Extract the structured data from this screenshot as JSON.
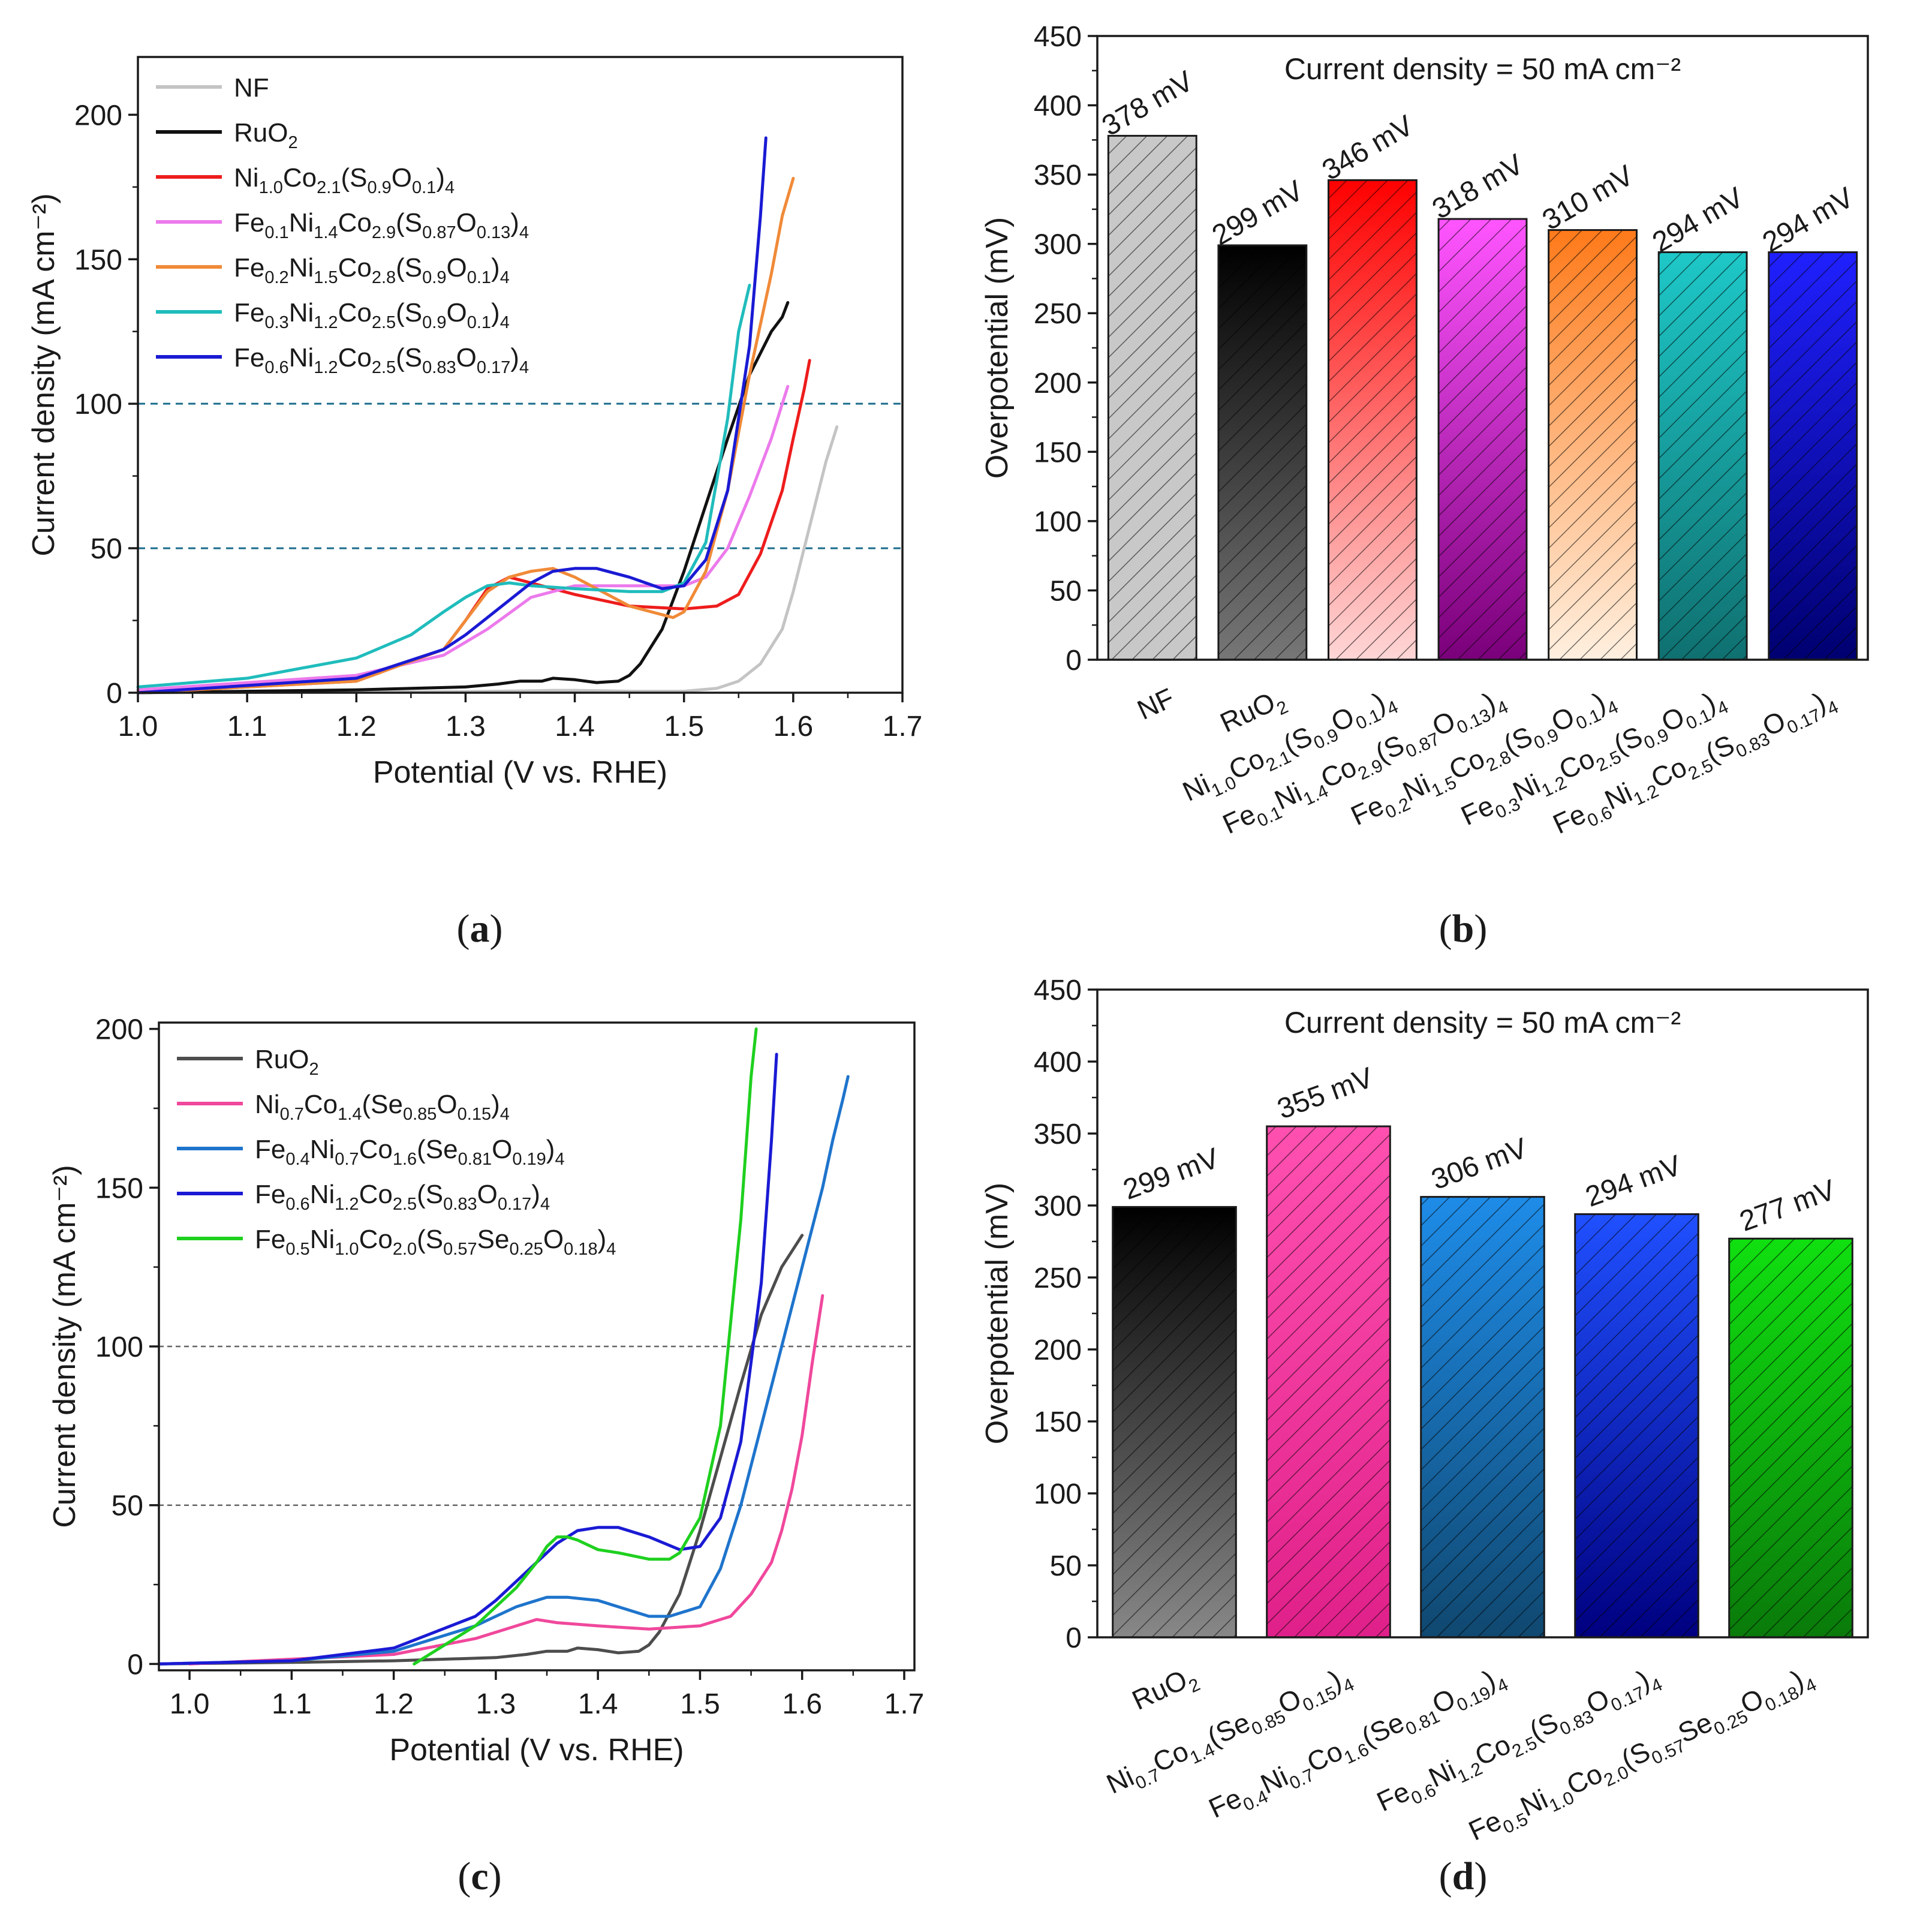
{
  "colors": {
    "NF": "#c4c4c4",
    "RuO2": "#111111",
    "NiCoSO": "#ee1c1c",
    "Fe01": "#ec7aec",
    "Fe02": "#f08a38",
    "Fe03": "#20bcbc",
    "Fe06": "#1a1ad4",
    "RuO2_c": "#4d4d4d",
    "NiCoSeO": "#f0489c",
    "Fe04": "#1e74cc",
    "Fe05": "#1fd01f",
    "ref_a": "#1b6c8c",
    "ref_c": "#666666"
  },
  "chart_data": [
    {
      "panel": "a",
      "type": "line",
      "panel_label": "a",
      "xlabel": "Potential (V vs. RHE)",
      "ylabel": "Current density (mA cm⁻²)",
      "xlim": [
        1.0,
        1.7
      ],
      "ylim": [
        0,
        220
      ],
      "xticks": [
        "1.0",
        "1.1",
        "1.2",
        "1.3",
        "1.4",
        "1.5",
        "1.6",
        "1.7"
      ],
      "yticks": [
        "0",
        "50",
        "100",
        "150",
        "200"
      ],
      "reference_lines": [
        50,
        100
      ],
      "legend_position": "top-left",
      "series": [
        {
          "name": "NF",
          "color_key": "NF",
          "x": [
            1.0,
            1.2,
            1.3,
            1.35,
            1.38,
            1.4,
            1.45,
            1.5,
            1.53,
            1.55,
            1.57,
            1.59,
            1.6,
            1.61,
            1.62,
            1.63,
            1.64
          ],
          "y": [
            0,
            0.2,
            0.4,
            0.6,
            0.8,
            0.8,
            0.5,
            0.5,
            1.5,
            4,
            10,
            22,
            35,
            50,
            65,
            80,
            92
          ]
        },
        {
          "name": "RuO2",
          "color_key": "RuO2",
          "x": [
            1.0,
            1.2,
            1.3,
            1.33,
            1.35,
            1.37,
            1.38,
            1.4,
            1.42,
            1.44,
            1.45,
            1.46,
            1.48,
            1.5,
            1.52,
            1.54,
            1.56,
            1.58,
            1.59,
            1.595
          ],
          "y": [
            0,
            1,
            2,
            3,
            4,
            4,
            5,
            4.5,
            3.5,
            4,
            6,
            10,
            22,
            42,
            65,
            88,
            110,
            125,
            130,
            135
          ]
        },
        {
          "name": "Ni1.0Co2.1(S0.9O0.1)4",
          "color_key": "NiCoSO",
          "x": [
            1.0,
            1.2,
            1.28,
            1.3,
            1.32,
            1.34,
            1.36,
            1.4,
            1.45,
            1.5,
            1.53,
            1.55,
            1.57,
            1.59,
            1.6,
            1.61,
            1.615
          ],
          "y": [
            0,
            4,
            15,
            25,
            36,
            40,
            38,
            34,
            30,
            29,
            30,
            34,
            48,
            70,
            88,
            105,
            115
          ]
        },
        {
          "name": "Fe0.1Ni1.4Co2.9(S0.87O0.13)4",
          "color_key": "Fe01",
          "x": [
            1.0,
            1.2,
            1.28,
            1.32,
            1.36,
            1.4,
            1.45,
            1.5,
            1.52,
            1.54,
            1.56,
            1.58,
            1.59,
            1.595
          ],
          "y": [
            1,
            6,
            13,
            22,
            33,
            37,
            37,
            37,
            40,
            50,
            68,
            88,
            100,
            106
          ]
        },
        {
          "name": "Fe0.2Ni1.5Co2.8(S0.9O0.1)4",
          "color_key": "Fe02",
          "x": [
            1.0,
            1.2,
            1.28,
            1.3,
            1.32,
            1.34,
            1.36,
            1.38,
            1.4,
            1.45,
            1.49,
            1.5,
            1.52,
            1.54,
            1.56,
            1.58,
            1.59,
            1.6
          ],
          "y": [
            0,
            4,
            15,
            25,
            35,
            40,
            42,
            43,
            40,
            30,
            26,
            28,
            42,
            70,
            110,
            145,
            165,
            178
          ]
        },
        {
          "name": "Fe0.3Ni1.2Co2.5(S0.9O0.1)4",
          "color_key": "Fe03",
          "x": [
            1.0,
            1.1,
            1.2,
            1.25,
            1.28,
            1.3,
            1.32,
            1.34,
            1.36,
            1.4,
            1.45,
            1.48,
            1.5,
            1.52,
            1.54,
            1.55,
            1.56
          ],
          "y": [
            2,
            5,
            12,
            20,
            28,
            33,
            37,
            38,
            37,
            36,
            35,
            35,
            38,
            52,
            95,
            125,
            141
          ]
        },
        {
          "name": "Fe0.6Ni1.2Co2.5(S0.83O0.17)4",
          "color_key": "Fe06",
          "x": [
            1.0,
            1.2,
            1.28,
            1.3,
            1.32,
            1.34,
            1.36,
            1.38,
            1.4,
            1.42,
            1.45,
            1.48,
            1.5,
            1.52,
            1.54,
            1.56,
            1.57,
            1.575
          ],
          "y": [
            0,
            5,
            15,
            20,
            26,
            32,
            38,
            42,
            43,
            43,
            40,
            36,
            37,
            46,
            70,
            120,
            165,
            192
          ]
        }
      ]
    },
    {
      "panel": "b",
      "type": "bar",
      "panel_label": "b",
      "ylabel": "Overpotential (mV)",
      "ylim": [
        0,
        450
      ],
      "yticks": [
        "0",
        "50",
        "100",
        "150",
        "200",
        "250",
        "300",
        "350",
        "400",
        "450"
      ],
      "annotation": "Current density = 50 mA cm⁻²",
      "categories": [
        "NF",
        "RuO2",
        "Ni1.0Co2.1(S0.9O0.1)4",
        "Fe0.1Ni1.4Co2.9(S0.87O0.13)4",
        "Fe0.2Ni1.5Co2.8(S0.9O0.1)4",
        "Fe0.3Ni1.2Co2.5(S0.9O0.1)4",
        "Fe0.6Ni1.2Co2.5(S0.83O0.17)4"
      ],
      "values": [
        378,
        299,
        346,
        318,
        310,
        294,
        294
      ],
      "value_labels": [
        "378 mV",
        "299 mV",
        "346 mV",
        "318 mV",
        "310 mV",
        "294 mV",
        "294 mV"
      ],
      "bar_gradients": [
        [
          "#c8c8c8",
          "#c8c8c8"
        ],
        [
          "#000000",
          "#777777"
        ],
        [
          "#ff0000",
          "#ffd6d6"
        ],
        [
          "#ff55ff",
          "#7a007a"
        ],
        [
          "#ff7a1a",
          "#fff0e0"
        ],
        [
          "#1ec8c8",
          "#107070"
        ],
        [
          "#2020ff",
          "#000070"
        ]
      ]
    },
    {
      "panel": "c",
      "type": "line",
      "panel_label": "c",
      "xlabel": "Potential (V vs. RHE)",
      "ylabel": "Current density (mA cm⁻²)",
      "xlim": [
        0.97,
        1.71
      ],
      "ylim": [
        -2,
        202
      ],
      "xticks": [
        "1.0",
        "1.1",
        "1.2",
        "1.3",
        "1.4",
        "1.5",
        "1.6",
        "1.7"
      ],
      "yticks": [
        "0",
        "50",
        "100",
        "150",
        "200"
      ],
      "reference_lines": [
        50,
        100
      ],
      "legend_position": "top-left",
      "series": [
        {
          "name": "RuO2",
          "color_key": "RuO2_c",
          "x": [
            0.97,
            1.1,
            1.2,
            1.3,
            1.33,
            1.35,
            1.37,
            1.38,
            1.4,
            1.42,
            1.44,
            1.45,
            1.46,
            1.48,
            1.5,
            1.52,
            1.54,
            1.56,
            1.58,
            1.59,
            1.6
          ],
          "y": [
            0,
            0.5,
            1,
            2,
            3,
            4,
            4,
            5,
            4.5,
            3.5,
            4,
            6,
            10,
            22,
            42,
            65,
            88,
            110,
            125,
            130,
            135
          ]
        },
        {
          "name": "Ni0.7Co1.4(Se0.85O0.15)4",
          "color_key": "NiCoSeO",
          "x": [
            1.0,
            1.2,
            1.28,
            1.31,
            1.33,
            1.34,
            1.36,
            1.4,
            1.45,
            1.5,
            1.53,
            1.55,
            1.57,
            1.58,
            1.59,
            1.6,
            1.61,
            1.62
          ],
          "y": [
            0,
            3,
            8,
            11,
            13,
            14,
            13,
            12,
            11,
            12,
            15,
            22,
            32,
            42,
            55,
            72,
            95,
            116
          ]
        },
        {
          "name": "Fe0.4Ni0.7Co1.6(Se0.81O0.19)4",
          "color_key": "Fe04",
          "x": [
            0.97,
            1.1,
            1.2,
            1.28,
            1.32,
            1.35,
            1.37,
            1.4,
            1.45,
            1.47,
            1.5,
            1.52,
            1.54,
            1.56,
            1.58,
            1.6,
            1.62,
            1.63,
            1.64,
            1.645
          ],
          "y": [
            0,
            1,
            4,
            12,
            18,
            21,
            21,
            20,
            15,
            15,
            18,
            30,
            50,
            75,
            100,
            125,
            150,
            165,
            178,
            185
          ]
        },
        {
          "name": "Fe0.6Ni1.2Co2.5(S0.83O0.17)4",
          "color_key": "Fe06",
          "x": [
            0.97,
            1.1,
            1.2,
            1.28,
            1.3,
            1.32,
            1.34,
            1.36,
            1.38,
            1.4,
            1.42,
            1.45,
            1.48,
            1.5,
            1.52,
            1.54,
            1.56,
            1.57,
            1.575
          ],
          "y": [
            0,
            1,
            5,
            15,
            20,
            26,
            32,
            38,
            42,
            43,
            43,
            40,
            36,
            37,
            46,
            70,
            120,
            165,
            192
          ]
        },
        {
          "name": "Fe0.5Ni1.0Co2.0(S0.57Se0.25O0.18)4",
          "color_key": "Fe05",
          "x": [
            1.22,
            1.25,
            1.28,
            1.3,
            1.32,
            1.34,
            1.35,
            1.36,
            1.37,
            1.38,
            1.4,
            1.42,
            1.45,
            1.47,
            1.48,
            1.5,
            1.52,
            1.54,
            1.55,
            1.555
          ],
          "y": [
            0,
            6,
            12,
            18,
            24,
            32,
            37,
            40,
            40,
            39,
            36,
            35,
            33,
            33,
            35,
            46,
            75,
            140,
            185,
            200
          ]
        }
      ]
    },
    {
      "panel": "d",
      "type": "bar",
      "panel_label": "d",
      "ylabel": "Overpotential (mV)",
      "ylim": [
        0,
        450
      ],
      "yticks": [
        "0",
        "50",
        "100",
        "150",
        "200",
        "250",
        "300",
        "350",
        "400",
        "450"
      ],
      "annotation": "Current density = 50 mA cm⁻²",
      "categories": [
        "RuO2",
        "Ni0.7Co1.4(Se0.85O0.15)4",
        "Fe0.4Ni0.7Co1.6(Se0.81O0.19)4",
        "Fe0.6Ni1.2Co2.5(S0.83O0.17)4",
        "Fe0.5Ni1.0Co2.0(S0.57Se0.25O0.18)4"
      ],
      "values": [
        299,
        355,
        306,
        294,
        277
      ],
      "value_labels": [
        "299 mV",
        "355 mV",
        "306 mV",
        "294 mV",
        "277 mV"
      ],
      "bar_gradients": [
        [
          "#000000",
          "#888888"
        ],
        [
          "#ff50b0",
          "#e0208a"
        ],
        [
          "#1e8ce8",
          "#104870"
        ],
        [
          "#2050ff",
          "#000080"
        ],
        [
          "#10e010",
          "#0a7a0a"
        ]
      ]
    }
  ]
}
